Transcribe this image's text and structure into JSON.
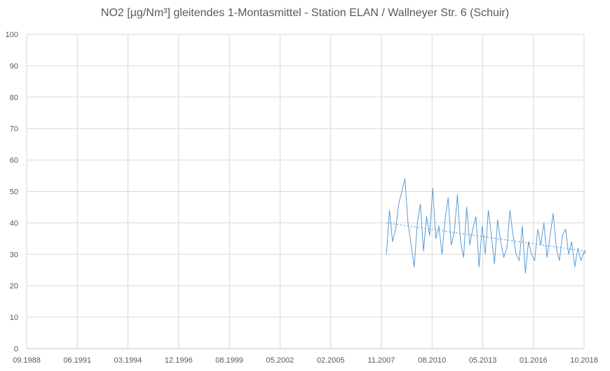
{
  "chart_data": {
    "type": "line",
    "title": "NO2 [µg/Nm³] gleitendes 1-Montasmittel -  Station ELAN / Wallneyer Str. 6 (Schuir)",
    "xlabel": "",
    "ylabel": "",
    "xlim": [
      "1988-09",
      "2018-10"
    ],
    "ylim": [
      0,
      100
    ],
    "ytick_step": 10,
    "x_tick_labels": [
      "09.1988",
      "06.1991",
      "03.1994",
      "12.1996",
      "08.1999",
      "05.2002",
      "02.2005",
      "11.2007",
      "08.2010",
      "05.2013",
      "01.2016",
      "10.2018"
    ],
    "grid": true,
    "legend": "none",
    "colors": {
      "series": "#5B9BD5",
      "grid": "#D9D9D9",
      "axis": "#BFBFBF",
      "text": "#595959"
    },
    "series": [
      {
        "style": "solid",
        "x": [
          "2008-02",
          "2008-04",
          "2008-06",
          "2008-08",
          "2008-10",
          "2008-12",
          "2009-02",
          "2009-04",
          "2009-06",
          "2009-08",
          "2009-10",
          "2009-12",
          "2010-02",
          "2010-04",
          "2010-06",
          "2010-08",
          "2010-10",
          "2010-12",
          "2011-02",
          "2011-04",
          "2011-06",
          "2011-08",
          "2011-10",
          "2011-12",
          "2012-02",
          "2012-04",
          "2012-06",
          "2012-08",
          "2012-10",
          "2012-12",
          "2013-02",
          "2013-04",
          "2013-06",
          "2013-08",
          "2013-10",
          "2013-12",
          "2014-02",
          "2014-04",
          "2014-06",
          "2014-08",
          "2014-10",
          "2014-12",
          "2015-02",
          "2015-04",
          "2015-06",
          "2015-08",
          "2015-10",
          "2015-12",
          "2016-02",
          "2016-04",
          "2016-06",
          "2016-08",
          "2016-10",
          "2016-12",
          "2017-02",
          "2017-04",
          "2017-06",
          "2017-08",
          "2017-10",
          "2017-12",
          "2018-02",
          "2018-04",
          "2018-06",
          "2018-08",
          "2018-10",
          "2018-11"
        ],
        "values": [
          30,
          44,
          34,
          38,
          46,
          50,
          54,
          40,
          33,
          26,
          40,
          46,
          31,
          42,
          36,
          51,
          35,
          39,
          30,
          41,
          48,
          33,
          37,
          49,
          34,
          29,
          45,
          33,
          38,
          42,
          26,
          39,
          30,
          44,
          36,
          27,
          41,
          34,
          29,
          32,
          44,
          36,
          30,
          28,
          39,
          24,
          34,
          30,
          28,
          38,
          33,
          40,
          29,
          36,
          43,
          32,
          28,
          36,
          38,
          30,
          34,
          26,
          32,
          28,
          31,
          30
        ]
      },
      {
        "style": "dotted",
        "x": [
          "2008-02",
          "2018-11"
        ],
        "values": [
          40,
          31
        ]
      }
    ]
  }
}
